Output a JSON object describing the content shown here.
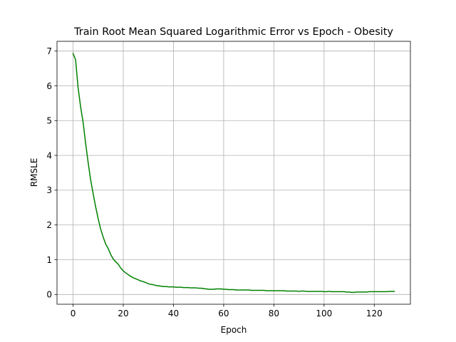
{
  "chart_data": {
    "type": "line",
    "title": "Train Root Mean Squared Logarithmic Error vs Epoch - Obesity",
    "xlabel": "Epoch",
    "ylabel": "RMSLE",
    "xlim": [
      -6.4,
      134.4
    ],
    "ylim": [
      -0.28,
      7.28
    ],
    "xticks": [
      0,
      20,
      40,
      60,
      80,
      100,
      120
    ],
    "yticks": [
      0,
      1,
      2,
      3,
      4,
      5,
      6,
      7
    ],
    "grid": true,
    "series": [
      {
        "color": "#008000",
        "x": [
          0,
          1,
          2,
          3,
          4,
          5,
          6,
          7,
          8,
          9,
          10,
          11,
          12,
          13,
          14,
          15,
          16,
          17,
          18,
          19,
          20,
          21,
          22,
          23,
          24,
          25,
          26,
          27,
          28,
          29,
          30,
          31,
          32,
          33,
          34,
          35,
          36,
          37,
          38,
          39,
          40,
          41,
          42,
          43,
          44,
          45,
          46,
          47,
          48,
          49,
          50,
          51,
          52,
          53,
          54,
          55,
          56,
          57,
          58,
          59,
          60,
          61,
          62,
          63,
          64,
          65,
          66,
          67,
          68,
          69,
          70,
          71,
          72,
          73,
          74,
          75,
          76,
          77,
          78,
          79,
          80,
          81,
          82,
          83,
          84,
          85,
          86,
          87,
          88,
          89,
          90,
          91,
          92,
          93,
          94,
          95,
          96,
          97,
          98,
          99,
          100,
          101,
          102,
          103,
          104,
          105,
          106,
          107,
          108,
          109,
          110,
          111,
          112,
          113,
          114,
          115,
          116,
          117,
          118,
          119,
          120,
          121,
          122,
          123,
          124,
          125,
          126,
          127,
          128
        ],
        "y": [
          6.93,
          6.75,
          5.95,
          5.4,
          4.95,
          4.35,
          3.8,
          3.3,
          2.9,
          2.52,
          2.18,
          1.88,
          1.65,
          1.45,
          1.32,
          1.15,
          1.02,
          0.94,
          0.87,
          0.76,
          0.68,
          0.62,
          0.57,
          0.52,
          0.48,
          0.45,
          0.42,
          0.39,
          0.37,
          0.34,
          0.31,
          0.29,
          0.28,
          0.26,
          0.25,
          0.24,
          0.23,
          0.23,
          0.22,
          0.22,
          0.22,
          0.21,
          0.21,
          0.21,
          0.2,
          0.2,
          0.2,
          0.19,
          0.19,
          0.19,
          0.18,
          0.18,
          0.17,
          0.16,
          0.15,
          0.15,
          0.15,
          0.16,
          0.16,
          0.16,
          0.15,
          0.15,
          0.14,
          0.14,
          0.14,
          0.13,
          0.13,
          0.13,
          0.13,
          0.13,
          0.13,
          0.12,
          0.12,
          0.12,
          0.12,
          0.12,
          0.12,
          0.11,
          0.11,
          0.11,
          0.11,
          0.11,
          0.11,
          0.11,
          0.11,
          0.1,
          0.1,
          0.1,
          0.1,
          0.1,
          0.09,
          0.1,
          0.1,
          0.09,
          0.09,
          0.09,
          0.09,
          0.09,
          0.09,
          0.09,
          0.08,
          0.08,
          0.09,
          0.08,
          0.08,
          0.08,
          0.08,
          0.08,
          0.08,
          0.07,
          0.07,
          0.06,
          0.06,
          0.07,
          0.07,
          0.07,
          0.07,
          0.07,
          0.08,
          0.08,
          0.08,
          0.08,
          0.08,
          0.08,
          0.08,
          0.08,
          0.09,
          0.09,
          0.09
        ]
      }
    ]
  }
}
